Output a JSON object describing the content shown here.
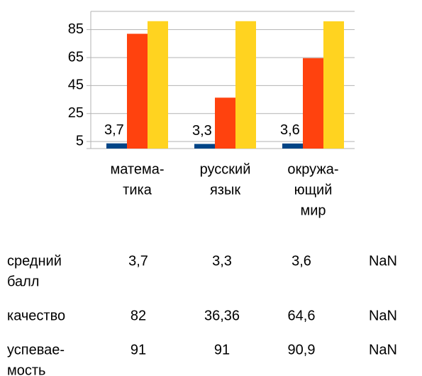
{
  "chart_data": {
    "type": "bar",
    "categories": [
      [
        "матема-",
        "тика"
      ],
      [
        "русский",
        "язык"
      ],
      [
        "окружа-",
        "ющий",
        "мир"
      ]
    ],
    "series": [
      {
        "color": "#004586",
        "values": [
          3.7,
          3.3,
          3.6
        ],
        "value_labels": [
          "3,7",
          "3,3",
          "3,6"
        ]
      },
      {
        "color": "#ff420e",
        "values": [
          82,
          36.36,
          64.6
        ]
      },
      {
        "color": "#ffd320",
        "values": [
          91,
          91,
          90.9
        ]
      }
    ],
    "ylim": [
      0,
      98
    ],
    "yticks": [
      5,
      25,
      45,
      65,
      85
    ],
    "grid": true
  },
  "table": {
    "rows": [
      [
        [
          "средний",
          "балл"
        ],
        "3,7",
        "3,3",
        "3,6",
        "NaN"
      ],
      [
        [
          "качество"
        ],
        "82",
        "36,36",
        "64,6",
        "NaN"
      ],
      [
        [
          "успевае-",
          "мость"
        ],
        "91",
        "91",
        "90,9",
        "NaN"
      ]
    ]
  }
}
